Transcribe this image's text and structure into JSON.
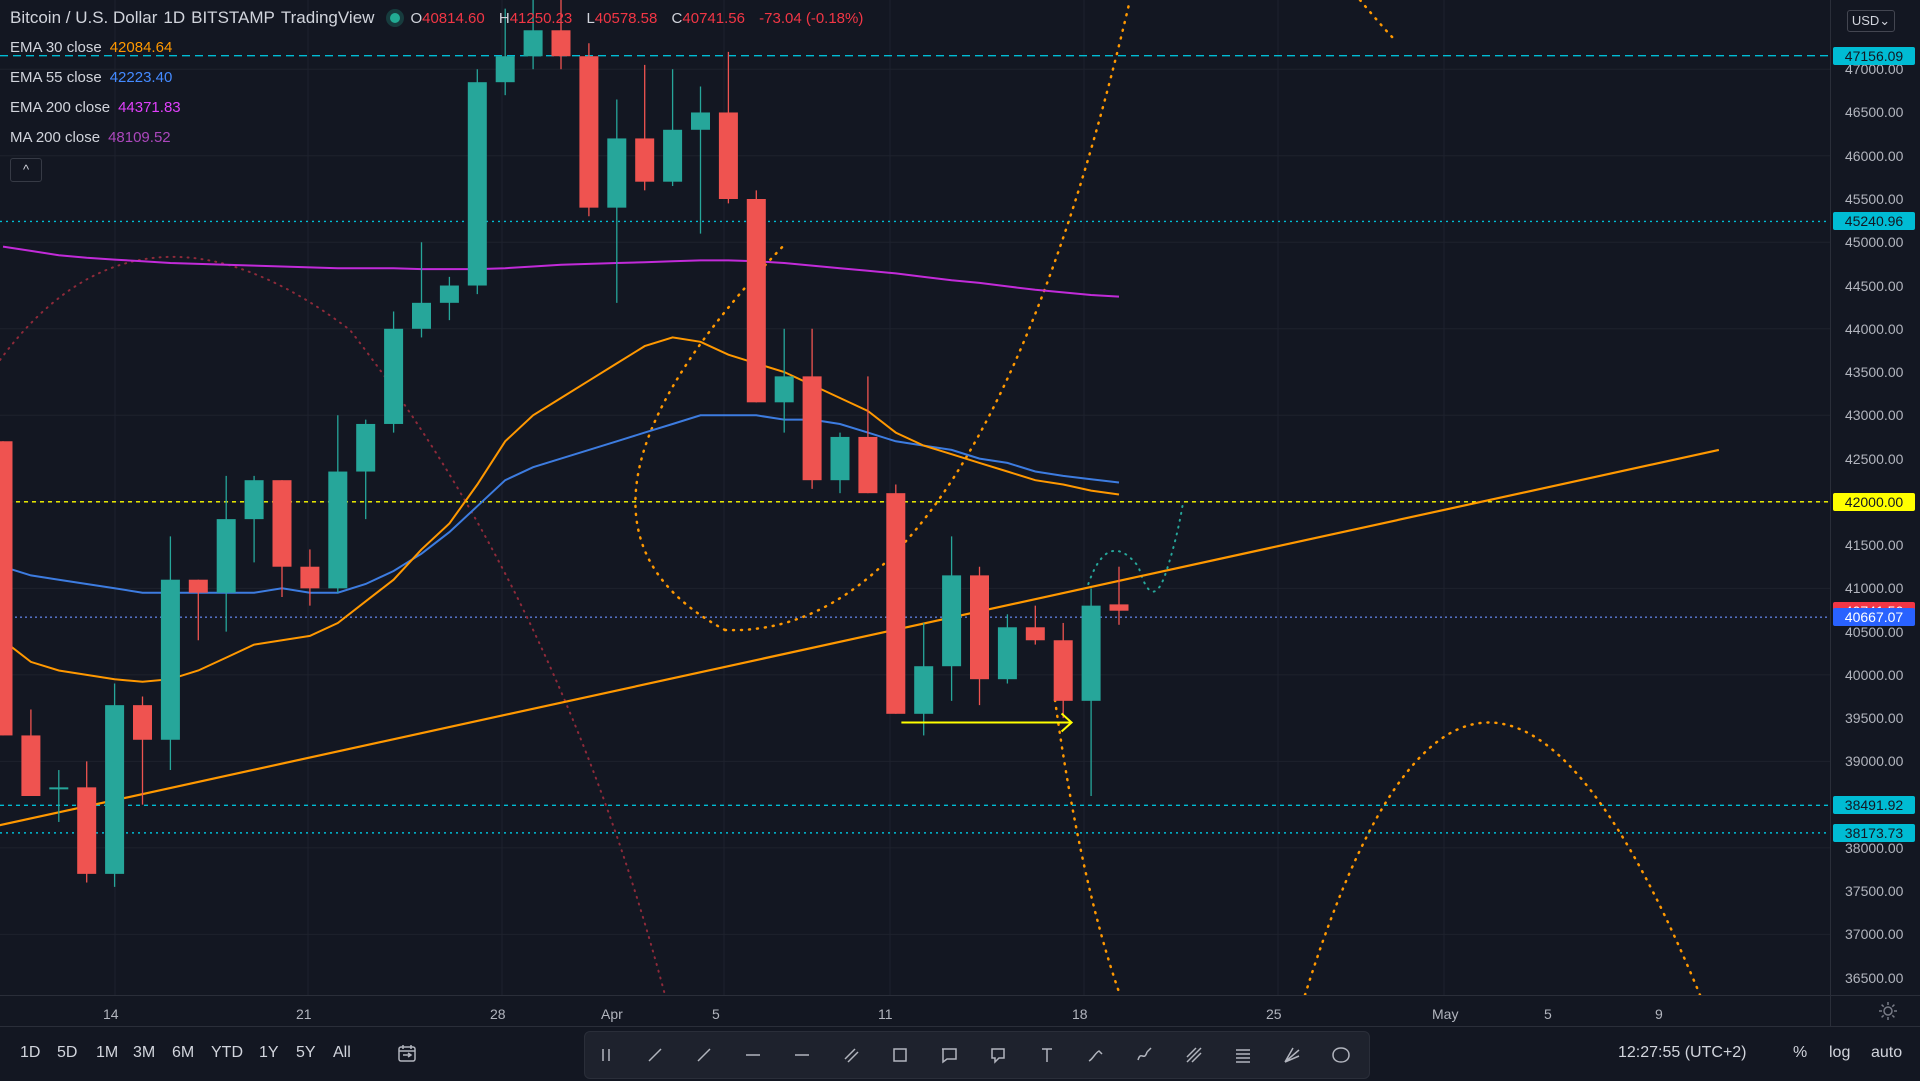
{
  "header": {
    "symbol": "Bitcoin / U.S. Dollar",
    "interval": "1D",
    "exchange": "BITSTAMP",
    "source": "TradingView",
    "ohlc": {
      "o_label": "O",
      "o": "40814.60",
      "h_label": "H",
      "h": "41250.23",
      "l_label": "L",
      "l": "40578.58",
      "c_label": "C",
      "c": "40741.56",
      "change": "-73.04 (-0.18%)"
    }
  },
  "indicators": [
    {
      "name": "EMA 30 close",
      "value": "42084.64",
      "color": "#ff9800"
    },
    {
      "name": "EMA 55 close",
      "value": "42223.40",
      "color": "#2962ff"
    },
    {
      "name": "EMA 200 close",
      "value": "44371.83",
      "color": "#e040fb"
    },
    {
      "name": "MA 200 close",
      "value": "48109.52",
      "color": "#9c27b0"
    }
  ],
  "collapse_label": "^",
  "currency": "USD",
  "price_axis": {
    "ticks": [
      "47000.00",
      "46500.00",
      "46000.00",
      "45500.00",
      "45000.00",
      "44500.00",
      "44000.00",
      "43500.00",
      "43000.00",
      "42500.00",
      "42000.00",
      "41500.00",
      "41000.00",
      "40500.00",
      "40000.00",
      "39500.00",
      "39000.00",
      "38500.00",
      "38000.00",
      "37500.00",
      "37000.00",
      "36500.00"
    ],
    "labels": [
      {
        "text": "47156.09",
        "bg": "#00bcd4",
        "fg": "#131722",
        "price": 47156.09
      },
      {
        "text": "45240.96",
        "bg": "#00bcd4",
        "fg": "#131722",
        "price": 45240.96
      },
      {
        "text": "42000.00",
        "bg": "#ffff00",
        "fg": "#131722",
        "price": 42000
      },
      {
        "text": "40741.56",
        "bg": "#f23645",
        "fg": "#ffffff",
        "price": 40741.56
      },
      {
        "text": "40667.07",
        "bg": "#2962ff",
        "fg": "#ffffff",
        "price": 40667.07
      },
      {
        "text": "38491.92",
        "bg": "#00bcd4",
        "fg": "#131722",
        "price": 38491.92
      },
      {
        "text": "38173.73",
        "bg": "#00bcd4",
        "fg": "#131722",
        "price": 38173.73
      }
    ]
  },
  "time_axis": [
    "14",
    "21",
    "28",
    "Apr",
    "5",
    "11",
    "18",
    "25",
    "May",
    "5",
    "9"
  ],
  "timeframes": [
    "1D",
    "5D",
    "1M",
    "3M",
    "6M",
    "YTD",
    "1Y",
    "5Y",
    "All"
  ],
  "drawing_tools": [
    "drag-handle-icon",
    "trend-line-icon",
    "ray-icon",
    "horizontal-ray-icon",
    "horizontal-line-icon",
    "parallel-channel-icon",
    "rectangle-icon",
    "callout-icon",
    "comment-icon",
    "text-icon",
    "brush-icon",
    "curve-icon",
    "fib-retracement-icon",
    "fib-levels-icon",
    "gann-fan-icon",
    "ellipse-icon"
  ],
  "clock": "12:27:55 (UTC+2)",
  "scale_options": [
    "%",
    "log",
    "auto"
  ],
  "colors": {
    "up": "#26a69a",
    "down": "#ef5350",
    "bg": "#131722",
    "grid": "#1e222d",
    "cyan": "#00bcd4",
    "yellow": "#ffff00",
    "orange": "#ff9800"
  },
  "chart_data": {
    "type": "candlestick",
    "candles": [
      {
        "o": 42700,
        "h": 42600,
        "l": 39300,
        "c": 39300
      },
      {
        "o": 39300,
        "h": 39600,
        "l": 38700,
        "c": 38600
      },
      {
        "o": 38700,
        "h": 38900,
        "l": 38300,
        "c": 38700
      },
      {
        "o": 38700,
        "h": 39000,
        "l": 37600,
        "c": 37700
      },
      {
        "o": 37700,
        "h": 39900,
        "l": 37550,
        "c": 39650
      },
      {
        "o": 39650,
        "h": 39750,
        "l": 38500,
        "c": 39250
      },
      {
        "o": 39250,
        "h": 41600,
        "l": 38900,
        "c": 41100
      },
      {
        "o": 41100,
        "h": 41100,
        "l": 40400,
        "c": 40950
      },
      {
        "o": 40950,
        "h": 42300,
        "l": 40500,
        "c": 41800
      },
      {
        "o": 41800,
        "h": 42300,
        "l": 41300,
        "c": 42250
      },
      {
        "o": 42250,
        "h": 42250,
        "l": 40900,
        "c": 41250
      },
      {
        "o": 41250,
        "h": 41450,
        "l": 40800,
        "c": 41000
      },
      {
        "o": 41000,
        "h": 43000,
        "l": 40950,
        "c": 42350
      },
      {
        "o": 42350,
        "h": 42950,
        "l": 41800,
        "c": 42900
      },
      {
        "o": 42900,
        "h": 44200,
        "l": 42800,
        "c": 44000
      },
      {
        "o": 44000,
        "h": 45000,
        "l": 43900,
        "c": 44300
      },
      {
        "o": 44300,
        "h": 44600,
        "l": 44100,
        "c": 44500
      },
      {
        "o": 44500,
        "h": 47000,
        "l": 44400,
        "c": 46850
      },
      {
        "o": 46850,
        "h": 47700,
        "l": 46700,
        "c": 47150
      },
      {
        "o": 47150,
        "h": 48150,
        "l": 47000,
        "c": 47450
      },
      {
        "o": 47450,
        "h": 48050,
        "l": 47000,
        "c": 47150
      },
      {
        "o": 47150,
        "h": 47300,
        "l": 45300,
        "c": 45400
      },
      {
        "o": 45400,
        "h": 46650,
        "l": 44300,
        "c": 46200
      },
      {
        "o": 46200,
        "h": 47050,
        "l": 45600,
        "c": 45700
      },
      {
        "o": 45700,
        "h": 47000,
        "l": 45650,
        "c": 46300
      },
      {
        "o": 46300,
        "h": 46800,
        "l": 45100,
        "c": 46500
      },
      {
        "o": 46500,
        "h": 47200,
        "l": 45450,
        "c": 45500
      },
      {
        "o": 45500,
        "h": 45600,
        "l": 43200,
        "c": 43150
      },
      {
        "o": 43150,
        "h": 44000,
        "l": 42800,
        "c": 43450
      },
      {
        "o": 43450,
        "h": 44000,
        "l": 42150,
        "c": 42250
      },
      {
        "o": 42250,
        "h": 42800,
        "l": 42100,
        "c": 42750
      },
      {
        "o": 42750,
        "h": 43450,
        "l": 42100,
        "c": 42100
      },
      {
        "o": 42100,
        "h": 42200,
        "l": 39600,
        "c": 39550
      },
      {
        "o": 39550,
        "h": 40600,
        "l": 39300,
        "c": 40100
      },
      {
        "o": 40100,
        "h": 41600,
        "l": 39700,
        "c": 41150
      },
      {
        "o": 41150,
        "h": 41250,
        "l": 39650,
        "c": 39950
      },
      {
        "o": 39950,
        "h": 40700,
        "l": 39900,
        "c": 40550
      },
      {
        "o": 40550,
        "h": 40800,
        "l": 40350,
        "c": 40400
      },
      {
        "o": 40400,
        "h": 40600,
        "l": 39500,
        "c": 39700
      },
      {
        "o": 39700,
        "h": 41000,
        "l": 38600,
        "c": 40800
      },
      {
        "o": 40814.6,
        "h": 41250.23,
        "l": 40578.58,
        "c": 40741.56
      }
    ],
    "ema30": [
      40400,
      40150,
      40050,
      40000,
      39950,
      39920,
      39950,
      40050,
      40200,
      40350,
      40400,
      40450,
      40600,
      40850,
      41100,
      41450,
      41750,
      42200,
      42700,
      43000,
      43200,
      43400,
      43600,
      43800,
      43900,
      43850,
      43700,
      43600,
      43500,
      43350,
      43200,
      43050,
      42800,
      42650,
      42550,
      42450,
      42350,
      42250,
      42200,
      42130,
      42084.64
    ],
    "ema55": [
      41250,
      41150,
      41100,
      41050,
      41000,
      40950,
      40950,
      40950,
      40950,
      40950,
      41000,
      40950,
      40950,
      41050,
      41200,
      41400,
      41650,
      41950,
      42250,
      42400,
      42500,
      42600,
      42700,
      42800,
      42900,
      43000,
      43000,
      43000,
      42950,
      42950,
      42900,
      42800,
      42700,
      42650,
      42600,
      42500,
      42450,
      42350,
      42300,
      42260,
      42223.4
    ],
    "ema200": [
      44950,
      44900,
      44850,
      44820,
      44800,
      44780,
      44760,
      44750,
      44740,
      44730,
      44720,
      44710,
      44700,
      44700,
      44700,
      44690,
      44690,
      44690,
      44700,
      44720,
      44740,
      44750,
      44760,
      44770,
      44780,
      44790,
      44790,
      44780,
      44760,
      44730,
      44700,
      44670,
      44640,
      44600,
      44560,
      44530,
      44490,
      44450,
      44420,
      44390,
      44371.83
    ],
    "horizontal_levels": [
      47156.09,
      45240.96,
      42000,
      40667.07,
      38491.92,
      38173.73
    ],
    "trendline": {
      "from": {
        "bar": -1,
        "price": 38200
      },
      "to": {
        "bar": 61.5,
        "price": 42600
      }
    },
    "ylim": [
      36300,
      47800
    ]
  }
}
